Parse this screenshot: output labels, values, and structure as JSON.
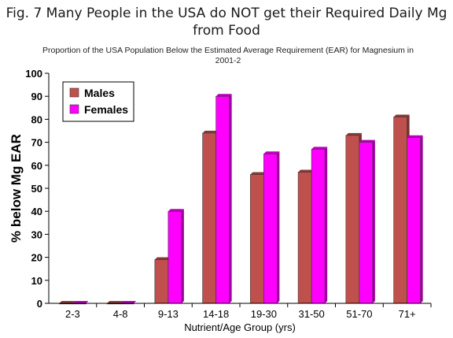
{
  "figure": {
    "title_line1": "Fig. 7  Many People in the USA do NOT get their Required Daily Mg",
    "title_line2": "from Food",
    "subtitle_line1": "Proportion of the USA Population Below the Estimated Average Requirement (EAR) for Magnesium in",
    "subtitle_line2": "2001-2"
  },
  "chart_data": {
    "type": "bar",
    "categories": [
      "2-3",
      "4-8",
      "9-13",
      "14-18",
      "19-30",
      "31-50",
      "51-70",
      "71+"
    ],
    "series": [
      {
        "name": "Males",
        "color": "#c0504d",
        "values": [
          0,
          0,
          19,
          74,
          56,
          57,
          73,
          81
        ]
      },
      {
        "name": "Females",
        "color": "#ff00ff",
        "values": [
          0,
          0,
          40,
          90,
          65,
          67,
          70,
          72
        ]
      }
    ],
    "xlabel": "Nutrient/Age Group (yrs)",
    "ylabel": "% below Mg EAR",
    "ylim": [
      0,
      100
    ],
    "yticks": [
      0,
      10,
      20,
      30,
      40,
      50,
      60,
      70,
      80,
      90,
      100
    ],
    "legend_position": "top-left",
    "grid": false
  }
}
